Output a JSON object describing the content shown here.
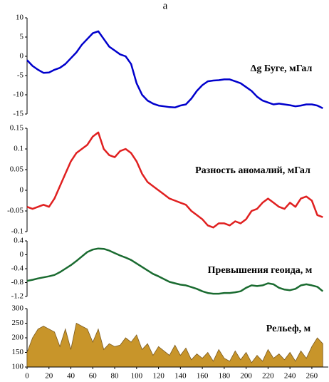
{
  "chart_data": [
    {
      "type": "line",
      "title": "a",
      "x": [
        0,
        5,
        10,
        15,
        20,
        25,
        30,
        35,
        40,
        45,
        50,
        55,
        60,
        65,
        70,
        75,
        80,
        85,
        90,
        95,
        100,
        105,
        110,
        115,
        120,
        125,
        130,
        135,
        140,
        145,
        150,
        155,
        160,
        165,
        170,
        175,
        180,
        185,
        190,
        195,
        200,
        205,
        210,
        215,
        220,
        225,
        230,
        235,
        240,
        245,
        250,
        255,
        260,
        265,
        270
      ],
      "xlim": [
        0,
        275
      ],
      "ylim": [
        -15,
        10
      ],
      "yticks": [
        10,
        5,
        0,
        -5,
        -10,
        -15
      ],
      "series": [
        {
          "name": "Δg Буге, мГал",
          "color": "#0000cc",
          "values": [
            -1,
            -2.5,
            -3.5,
            -4.3,
            -4.2,
            -3.5,
            -3,
            -2,
            -0.5,
            1,
            3,
            4.5,
            6,
            6.5,
            4.5,
            2.5,
            1.5,
            0.5,
            0,
            -2,
            -7,
            -10,
            -11.5,
            -12.3,
            -12.8,
            -13,
            -13.2,
            -13.3,
            -12.8,
            -12.5,
            -11,
            -9,
            -7.5,
            -6.5,
            -6.3,
            -6.2,
            -6,
            -6,
            -6.5,
            -7,
            -8,
            -9,
            -10.5,
            -11.5,
            -12,
            -12.5,
            -12.3,
            -12.5,
            -12.7,
            -13,
            -12.8,
            -12.5,
            -12.5,
            -12.8,
            -13.5
          ]
        }
      ]
    },
    {
      "type": "line",
      "x": [
        0,
        5,
        10,
        15,
        20,
        25,
        30,
        35,
        40,
        45,
        50,
        55,
        60,
        65,
        70,
        75,
        80,
        85,
        90,
        95,
        100,
        105,
        110,
        115,
        120,
        125,
        130,
        135,
        140,
        145,
        150,
        155,
        160,
        165,
        170,
        175,
        180,
        185,
        190,
        195,
        200,
        205,
        210,
        215,
        220,
        225,
        230,
        235,
        240,
        245,
        250,
        255,
        260,
        265,
        270
      ],
      "xlim": [
        0,
        275
      ],
      "ylim": [
        -0.1,
        0.15
      ],
      "yticks": [
        0.15,
        0.1,
        0.05,
        0,
        -0.05,
        -0.1
      ],
      "series": [
        {
          "name": "Разность аномалий, мГал",
          "color": "#e02020",
          "values": [
            -0.04,
            -0.045,
            -0.04,
            -0.035,
            -0.04,
            -0.02,
            0.01,
            0.04,
            0.07,
            0.09,
            0.1,
            0.11,
            0.13,
            0.14,
            0.1,
            0.085,
            0.08,
            0.095,
            0.1,
            0.09,
            0.07,
            0.04,
            0.02,
            0.01,
            0,
            -0.01,
            -0.02,
            -0.025,
            -0.03,
            -0.035,
            -0.05,
            -0.06,
            -0.07,
            -0.085,
            -0.09,
            -0.08,
            -0.08,
            -0.085,
            -0.075,
            -0.08,
            -0.07,
            -0.05,
            -0.045,
            -0.03,
            -0.02,
            -0.03,
            -0.04,
            -0.045,
            -0.03,
            -0.04,
            -0.02,
            -0.015,
            -0.025,
            -0.06,
            -0.065
          ]
        }
      ]
    },
    {
      "type": "line",
      "x": [
        0,
        5,
        10,
        15,
        20,
        25,
        30,
        35,
        40,
        45,
        50,
        55,
        60,
        65,
        70,
        75,
        80,
        85,
        90,
        95,
        100,
        105,
        110,
        115,
        120,
        125,
        130,
        135,
        140,
        145,
        150,
        155,
        160,
        165,
        170,
        175,
        180,
        185,
        190,
        195,
        200,
        205,
        210,
        215,
        220,
        225,
        230,
        235,
        240,
        245,
        250,
        255,
        260,
        265,
        270
      ],
      "xlim": [
        0,
        275
      ],
      "ylim": [
        -1.2,
        0.4
      ],
      "yticks": [
        0.4,
        0,
        -0.4,
        -0.8,
        -1.2
      ],
      "series": [
        {
          "name": "Превышения геоида, м",
          "color": "#1a6b30",
          "values": [
            -0.75,
            -0.72,
            -0.68,
            -0.65,
            -0.62,
            -0.58,
            -0.5,
            -0.4,
            -0.3,
            -0.18,
            -0.05,
            0.08,
            0.15,
            0.18,
            0.17,
            0.12,
            0.05,
            -0.02,
            -0.08,
            -0.15,
            -0.25,
            -0.35,
            -0.45,
            -0.55,
            -0.62,
            -0.7,
            -0.78,
            -0.82,
            -0.86,
            -0.88,
            -0.93,
            -0.98,
            -1.05,
            -1.1,
            -1.12,
            -1.12,
            -1.1,
            -1.1,
            -1.08,
            -1.05,
            -0.95,
            -0.88,
            -0.9,
            -0.88,
            -0.82,
            -0.85,
            -0.95,
            -1,
            -1.02,
            -0.98,
            -0.88,
            -0.85,
            -0.88,
            -0.92,
            -1.05
          ]
        }
      ]
    },
    {
      "type": "area",
      "x": [
        0,
        5,
        10,
        15,
        20,
        25,
        30,
        35,
        40,
        45,
        50,
        55,
        60,
        65,
        70,
        75,
        80,
        85,
        90,
        95,
        100,
        105,
        110,
        115,
        120,
        125,
        130,
        135,
        140,
        145,
        150,
        155,
        160,
        165,
        170,
        175,
        180,
        185,
        190,
        195,
        200,
        205,
        210,
        215,
        220,
        225,
        230,
        235,
        240,
        245,
        250,
        255,
        260,
        265,
        270
      ],
      "xlim": [
        0,
        275
      ],
      "xticks": [
        0,
        20,
        40,
        60,
        80,
        100,
        120,
        140,
        160,
        180,
        200,
        220,
        240,
        260
      ],
      "ylim": [
        100,
        300
      ],
      "yticks": [
        300,
        250,
        200,
        150,
        100
      ],
      "series": [
        {
          "name": "Рельеф, м",
          "color": "#c8952a",
          "values": [
            150,
            200,
            230,
            240,
            230,
            220,
            170,
            230,
            160,
            250,
            240,
            230,
            185,
            230,
            160,
            180,
            170,
            175,
            200,
            185,
            210,
            160,
            180,
            140,
            170,
            155,
            140,
            175,
            140,
            165,
            125,
            145,
            130,
            150,
            120,
            160,
            130,
            120,
            155,
            125,
            150,
            115,
            140,
            120,
            160,
            130,
            145,
            125,
            150,
            120,
            155,
            130,
            170,
            200,
            180
          ]
        }
      ]
    }
  ]
}
